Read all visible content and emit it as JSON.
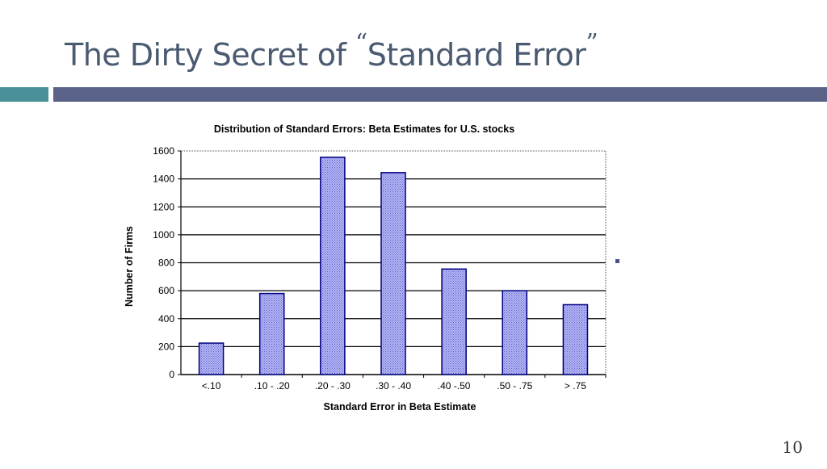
{
  "slide": {
    "title_main": "The Dirty Secret of ",
    "quote_open": "“",
    "title_quoted": "Standard Error",
    "quote_close": "”",
    "page_number": "10",
    "colors": {
      "accent_teal": "#4a9098",
      "accent_navy": "#5a6288",
      "bar_fill": "#a8aaf0",
      "bar_border": "#000080"
    }
  },
  "chart_data": {
    "type": "bar",
    "title": "Distribution of Standard Errors: Beta Estimates for U.S. stocks",
    "xlabel": "Standard Error in Beta Estimate",
    "ylabel": "Number of Firms",
    "categories": [
      "<.10",
      ".10 - .20",
      ".20 - .30",
      ".30 - .40",
      ".40 -.50",
      ".50 - .75",
      "> .75"
    ],
    "values": [
      225,
      580,
      1555,
      1445,
      755,
      600,
      500
    ],
    "ylim": [
      0,
      1600
    ],
    "yticks": [
      0,
      200,
      400,
      600,
      800,
      1000,
      1200,
      1400,
      1600
    ],
    "grid": true,
    "legend": "none"
  }
}
